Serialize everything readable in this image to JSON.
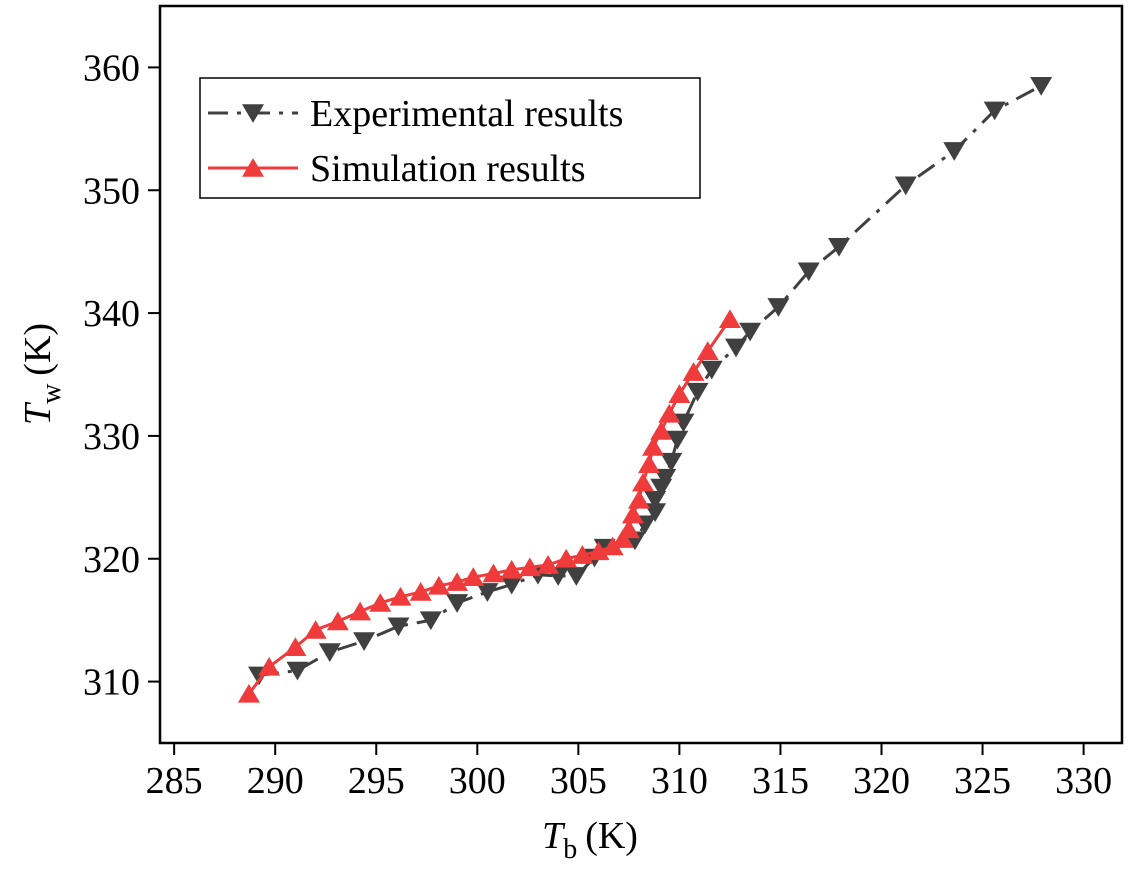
{
  "chart_data": {
    "type": "line",
    "x_label": {
      "symbol": "T",
      "subscript": "b",
      "unit": "(K)"
    },
    "y_label": {
      "symbol": "T",
      "subscript": "w",
      "unit": "(K)"
    },
    "xlim": [
      284.3,
      331.9
    ],
    "xticks": [
      285,
      290,
      295,
      300,
      305,
      310,
      315,
      320,
      325,
      330
    ],
    "ylim": [
      305,
      365
    ],
    "yticks": [
      310,
      320,
      330,
      340,
      350,
      360
    ],
    "legend": "upper left",
    "series": [
      {
        "name": "Experimental results",
        "color": "#404040",
        "marker": "triangle-down",
        "line": "dashdot",
        "x": [
          289.2,
          291.1,
          292.7,
          294.4,
          296.1,
          297.7,
          299.0,
          300.5,
          301.7,
          303.0,
          304.0,
          304.9,
          305.8,
          306.3,
          307.8,
          308.3,
          308.8,
          308.8,
          309.1,
          309.3,
          309.6,
          309.9,
          310.2,
          310.9,
          311.6,
          312.8,
          313.5,
          314.9,
          316.4,
          317.9,
          321.2,
          323.6,
          325.6,
          327.9
        ],
        "values": [
          310.5,
          310.9,
          312.4,
          313.3,
          314.5,
          315.0,
          316.4,
          317.3,
          317.9,
          318.7,
          318.6,
          318.6,
          320.1,
          320.9,
          321.5,
          322.8,
          323.8,
          324.8,
          325.8,
          326.6,
          327.9,
          329.7,
          331.1,
          333.6,
          335.4,
          337.2,
          338.5,
          340.5,
          343.4,
          345.4,
          350.4,
          353.2,
          356.5,
          358.5
        ]
      },
      {
        "name": "Simulation results",
        "color": "#ef3b3b",
        "marker": "triangle-up",
        "line": "solid",
        "x": [
          288.7,
          289.7,
          291.0,
          292.0,
          293.1,
          294.2,
          295.2,
          296.2,
          297.2,
          298.1,
          299.0,
          299.8,
          300.8,
          301.7,
          302.6,
          303.5,
          304.4,
          305.2,
          306.0,
          306.7,
          307.2,
          307.5,
          307.7,
          308.0,
          308.2,
          308.5,
          308.7,
          309.1,
          309.5,
          310.0,
          310.7,
          311.4,
          312.5
        ],
        "values": [
          309.0,
          311.2,
          312.8,
          314.2,
          314.9,
          315.7,
          316.4,
          316.9,
          317.3,
          317.8,
          318.1,
          318.5,
          318.8,
          319.1,
          319.3,
          319.5,
          320.0,
          320.3,
          320.6,
          321.0,
          321.6,
          322.4,
          323.6,
          324.8,
          326.2,
          327.7,
          329.1,
          330.4,
          331.8,
          333.4,
          335.2,
          336.9,
          339.5
        ]
      }
    ]
  }
}
